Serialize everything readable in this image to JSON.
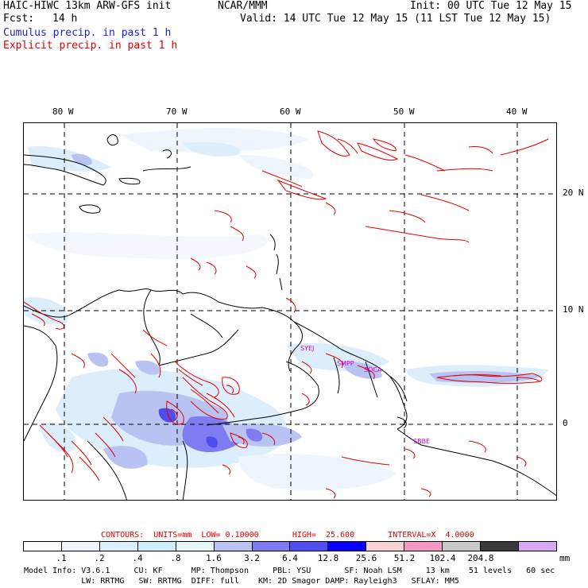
{
  "header": {
    "model": "HAIC-HIWC 13km ARW-GFS init",
    "org": "NCAR/MMM",
    "init": "Init: 00 UTC Tue 12 May 15",
    "fcst_label": "Fcst:",
    "fcst_value": "14 h",
    "valid": "Valid: 14 UTC Tue 12 May 15 (11 LST Tue 12 May 15)",
    "cumulus": "Cumulus precip. in past 1 h",
    "explicit": "Explicit precip. in past 1 h"
  },
  "map": {
    "lon_labels": [
      "80 W",
      "70 W",
      "60 W",
      "50 W",
      "40 W"
    ],
    "lat_labels": [
      "20 N",
      "10 N",
      "0"
    ],
    "station_labels": [
      "SYEJ",
      "SMPP",
      "SOCA",
      "SBBE"
    ],
    "colors": {
      "explicit_contour": "#e00000",
      "cumulus_fill": "#5555ee",
      "coast": "#000000",
      "station": "#cc00cc"
    }
  },
  "contours": {
    "text": "CONTOURS:  UNITS=mm  LOW= 0.10000       HIGH=  25.600       INTERVAL=X  4.0000"
  },
  "colorbar": {
    "units": "mm",
    "levels": [
      ".1",
      ".2",
      ".4",
      ".8",
      "1.6",
      "3.2",
      "6.4",
      "12.8",
      "25.6",
      "51.2",
      "102.4",
      "204.8"
    ],
    "colors": [
      "#ffffff",
      "#f0f6ff",
      "#dceefc",
      "#cdeffa",
      "#e6f7f7",
      "#b9c3f2",
      "#7e7cf0",
      "#4f4cf0",
      "#0a00ff",
      "#f9d2d6",
      "#f598c3",
      "#c9c9c9",
      "#3a3a3a",
      "#d8a8f5"
    ]
  },
  "footer": {
    "line1": "Model Info: V3.6.1     CU: KF      MP: Thompson     PBL: YSU       SF: Noah LSM     13 km    51 levels   60 sec",
    "line2": "            LW: RRTMG   SW: RRTMG  DIFF: full    KM: 2D Smagor DAMP: Rayleigh3   SFLAY: MM5"
  }
}
